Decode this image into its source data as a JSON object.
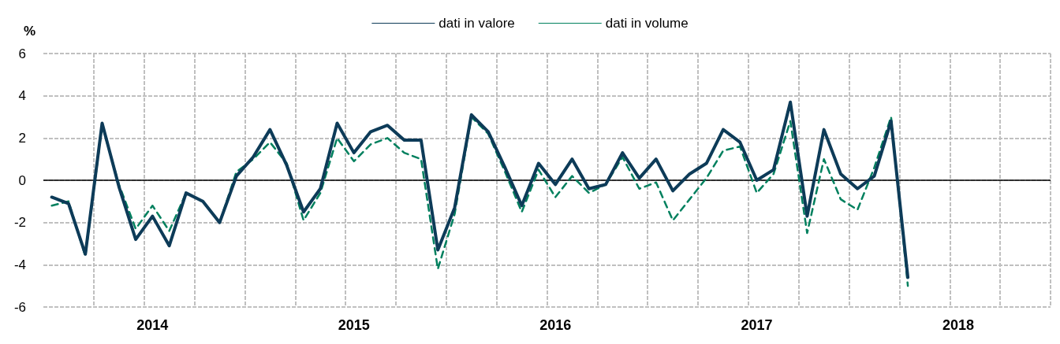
{
  "chart_data": {
    "type": "line",
    "ylabel": "%",
    "categories": [
      null,
      null,
      null,
      null,
      null,
      null,
      "2014",
      null,
      null,
      null,
      null,
      null,
      null,
      null,
      null,
      null,
      null,
      null,
      "2015",
      null,
      null,
      null,
      null,
      null,
      null,
      null,
      null,
      null,
      null,
      null,
      "2016",
      null,
      null,
      null,
      null,
      null,
      null,
      null,
      null,
      null,
      null,
      null,
      "2017",
      null,
      null,
      null,
      null,
      null,
      null,
      null,
      null,
      null,
      null,
      null,
      "2018",
      null,
      null,
      null,
      null,
      null
    ],
    "series": [
      {
        "name": "dati in valore",
        "color": "#0d3b58",
        "line_style": "solid",
        "values": [
          -0.8,
          -1.1,
          -3.5,
          2.7,
          -0.3,
          -2.8,
          -1.7,
          -3.1,
          -0.6,
          -1.0,
          -2.0,
          0.2,
          1.1,
          2.4,
          0.7,
          -1.5,
          -0.4,
          2.7,
          1.3,
          2.3,
          2.6,
          1.9,
          1.9,
          -3.3,
          -1.3,
          3.1,
          2.3,
          0.6,
          -1.2,
          0.8,
          -0.2,
          1.0,
          -0.4,
          -0.2,
          1.3,
          0.1,
          1.0,
          -0.5,
          0.3,
          0.8,
          2.4,
          1.8,
          0.0,
          0.5,
          3.7,
          -1.7,
          2.4,
          0.3,
          -0.4,
          0.2,
          2.8,
          -4.6,
          null,
          null,
          null,
          null,
          null,
          null,
          null,
          null
        ]
      },
      {
        "name": "dati in volume",
        "color": "#00805e",
        "line_style": "dashed",
        "values": [
          -1.2,
          -1.0,
          -3.6,
          2.6,
          -0.2,
          -2.3,
          -1.2,
          -2.4,
          -0.6,
          -1.0,
          -2.0,
          0.4,
          1.0,
          1.8,
          0.8,
          -1.9,
          -0.6,
          2.0,
          0.9,
          1.7,
          2.0,
          1.3,
          1.0,
          -4.2,
          -1.6,
          3.0,
          2.2,
          0.4,
          -1.5,
          0.5,
          -0.8,
          0.2,
          -0.6,
          -0.2,
          1.1,
          -0.4,
          -0.1,
          -1.9,
          -0.9,
          0.1,
          1.4,
          1.6,
          -0.6,
          0.3,
          2.8,
          -2.5,
          1.0,
          -0.9,
          -1.4,
          0.6,
          3.0,
          -5.0,
          null,
          null,
          null,
          null,
          null,
          null,
          null,
          null
        ]
      }
    ],
    "ylim": [
      -6,
      6
    ],
    "yticks": [
      -6,
      -4,
      -2,
      0,
      2,
      4,
      6
    ],
    "grid": true,
    "legend": "top",
    "marker": "none",
    "ref_lines": [
      {
        "axis": "y",
        "value": 0,
        "color": "#000000"
      }
    ]
  }
}
